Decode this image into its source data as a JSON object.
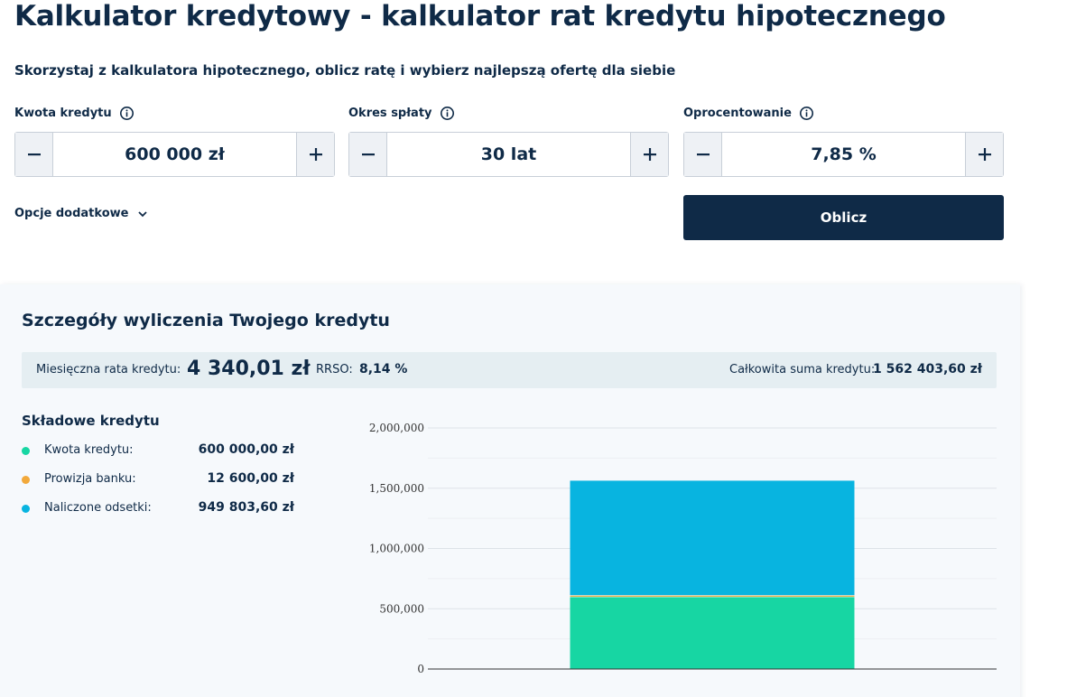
{
  "page": {
    "title": "Kalkulator kredytowy - kalkulator rat kredytu hipotecznego",
    "subtitle": "Skorzystaj z kalkulatora hipotecznego, oblicz ratę i wybierz najlepszą ofertę dla siebie"
  },
  "form": {
    "loan_amount": {
      "label": "Kwota kredytu",
      "value": "600 000 zł"
    },
    "term": {
      "label": "Okres spłaty",
      "value": "30 lat"
    },
    "interest": {
      "label": "Oprocentowanie",
      "value": "7,85 %"
    },
    "extra_options_label": "Opcje dodatkowe",
    "calculate_label": "Oblicz"
  },
  "results": {
    "title": "Szczegóły wyliczenia Twojego kredytu",
    "monthly_label": "Miesięczna rata kredytu:",
    "monthly_value": "4 340,01 zł",
    "rrso_label": "RRSO:",
    "rrso_value": "8,14 %",
    "total_label": "Całkowita suma kredytu:",
    "total_value": "1 562 403,60 zł",
    "components_title": "Składowe kredytu",
    "components": [
      {
        "name": "Kwota kredytu:",
        "amount": "600 000,00 zł",
        "color": "#17d6a3"
      },
      {
        "name": "Prowizja banku:",
        "amount": "12 600,00 zł",
        "color": "#f2a93b"
      },
      {
        "name": "Naliczone odsetki:",
        "amount": "949 803,60 zł",
        "color": "#08b4e0"
      }
    ]
  },
  "chart_data": {
    "type": "bar",
    "stacked": true,
    "categories": [
      ""
    ],
    "series": [
      {
        "values": [
          600000
        ],
        "color": "#17d6a3"
      },
      {
        "values": [
          12600
        ],
        "color": "#f2a93b"
      },
      {
        "values": [
          949803.6
        ],
        "color": "#08b4e0"
      }
    ],
    "ylim": [
      0,
      2000000
    ],
    "yticks": [
      0,
      500000,
      1000000,
      1500000,
      2000000
    ],
    "ytick_labels": [
      "0",
      "500,000",
      "1,000,000",
      "1,500,000",
      "2,000,000"
    ],
    "grid": true
  }
}
